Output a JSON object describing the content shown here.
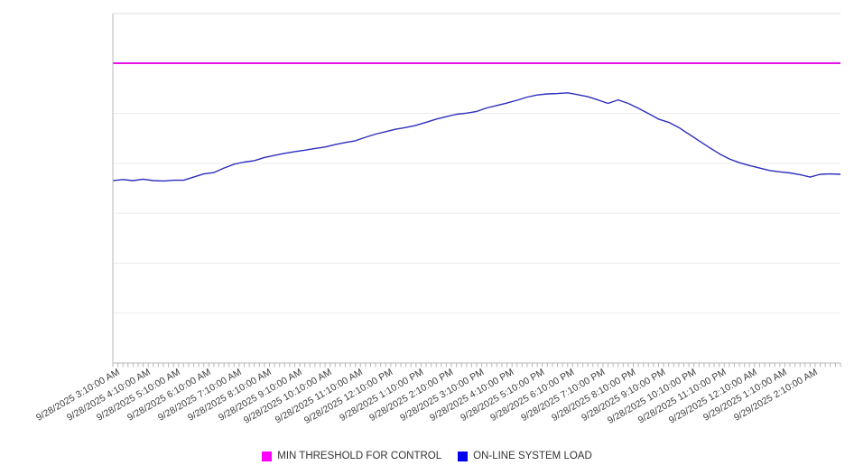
{
  "chart_data": {
    "type": "line",
    "title": "",
    "x_axis": {
      "labels": [
        "9/28/2025 3:10:00 AM",
        "9/28/2025 4:10:00 AM",
        "9/28/2025 5:10:00 AM",
        "9/28/2025 6:10:00 AM",
        "9/28/2025 7:10:00 AM",
        "9/28/2025 8:10:00 AM",
        "9/28/2025 9:10:00 AM",
        "9/28/2025 10:10:00 AM",
        "9/28/2025 11:10:00 AM",
        "9/28/2025 12:10:00 PM",
        "9/28/2025 1:10:00 PM",
        "9/28/2025 2:10:00 PM",
        "9/28/2025 3:10:00 PM",
        "9/28/2025 4:10:00 PM",
        "9/28/2025 5:10:00 PM",
        "9/28/2025 6:10:00 PM",
        "9/28/2025 7:10:00 PM",
        "9/28/2025 8:10:00 PM",
        "9/28/2025 9:10:00 PM",
        "9/28/2025 10:10:00 PM",
        "9/28/2025 11:10:00 PM",
        "9/29/2025 12:10:00 AM",
        "9/29/2025 1:10:00 AM",
        "9/29/2025 2:10:00 AM"
      ],
      "label_interval_min": 60,
      "minor_tick_interval_min": 10,
      "total_span_min": 1440,
      "label_rotation_deg": -30
    },
    "y_axis": {
      "tick_labels_visible": false,
      "scale": "relative-percent-of-plot-height",
      "range": [
        0,
        100
      ],
      "gridline_divisions": 7,
      "grid_on": true
    },
    "series": [
      {
        "name": "MIN THRESHOLD FOR CONTROL",
        "type": "threshold-line",
        "value": 85.8,
        "line_color": "#e511e5",
        "legend_color": "#ff00ff"
      },
      {
        "name": "ON-LINE SYSTEM LOAD",
        "type": "line",
        "point_interval_min": 20,
        "start_label": "9/28/2025 3:10:00 AM",
        "values": [
          52.2,
          52.5,
          52.2,
          52.6,
          52.2,
          52.1,
          52.3,
          52.3,
          53.2,
          54.1,
          54.5,
          55.8,
          56.9,
          57.5,
          57.9,
          58.8,
          59.4,
          60.0,
          60.5,
          60.9,
          61.4,
          61.8,
          62.5,
          63.1,
          63.6,
          64.6,
          65.5,
          66.2,
          66.9,
          67.4,
          68.0,
          68.9,
          69.8,
          70.5,
          71.2,
          71.5,
          72.0,
          73.0,
          73.7,
          74.4,
          75.2,
          76.1,
          76.7,
          77.0,
          77.1,
          77.3,
          76.8,
          76.2,
          75.3,
          74.3,
          75.3,
          74.3,
          72.9,
          71.4,
          69.8,
          68.9,
          67.4,
          65.5,
          63.6,
          61.7,
          59.9,
          58.4,
          57.3,
          56.5,
          55.8,
          55.1,
          54.7,
          54.4,
          53.9,
          53.2,
          54.0,
          54.1,
          54.0
        ],
        "line_color": "#2d2dbe",
        "legend_color": "#0000ee"
      }
    ],
    "legend_position": "bottom-center"
  },
  "legend": {
    "items": [
      {
        "label": "MIN THRESHOLD FOR CONTROL",
        "color": "#ff00ff"
      },
      {
        "label": "ON-LINE SYSTEM LOAD",
        "color": "#0000ee"
      }
    ]
  },
  "colors": {
    "grid": "#ececec",
    "plot_top_border": "#dddddd",
    "axis": "#b7b7b7",
    "tick": "#b7b7b7",
    "background": "#ffffff"
  }
}
